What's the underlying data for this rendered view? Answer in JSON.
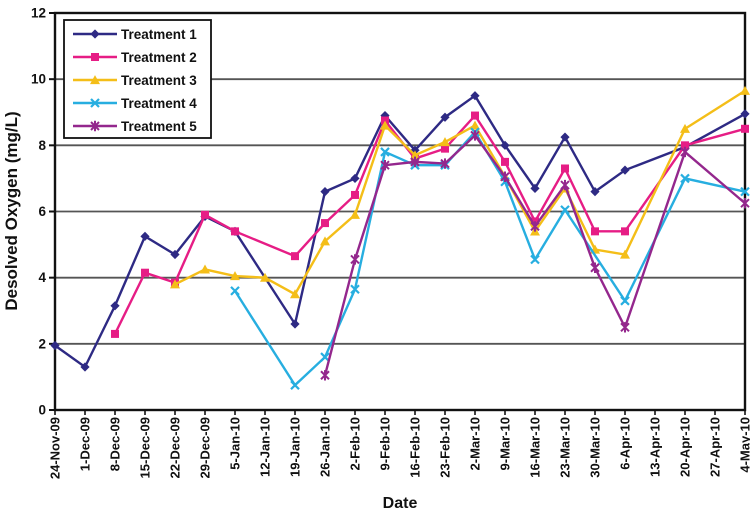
{
  "chart_data": {
    "type": "line",
    "xlabel": "Date",
    "ylabel": "Desolved Oxygen (mg/L)",
    "ylim": [
      0,
      12
    ],
    "yticks": [
      0,
      2,
      4,
      6,
      8,
      10,
      12
    ],
    "grid": "horizontal",
    "legend_position": "top-left-inside",
    "axis_color": "#111111",
    "gridline_color": "#555555",
    "categories": [
      "24-Nov-09",
      "1-Dec-09",
      "8-Dec-09",
      "15-Dec-09",
      "22-Dec-09",
      "29-Dec-09",
      "5-Jan-10",
      "12-Jan-10",
      "19-Jan-10",
      "26-Jan-10",
      "2-Feb-10",
      "9-Feb-10",
      "16-Feb-10",
      "23-Feb-10",
      "2-Mar-10",
      "9-Mar-10",
      "16-Mar-10",
      "23-Mar-10",
      "30-Mar-10",
      "6-Apr-10",
      "13-Apr-10",
      "20-Apr-10",
      "27-Apr-10",
      "4-May-10"
    ],
    "series": [
      {
        "name": "Treatment 1",
        "color": "#2E2A84",
        "marker": "diamond",
        "values": [
          1.95,
          1.3,
          3.15,
          5.25,
          4.7,
          5.85,
          5.4,
          null,
          2.6,
          6.6,
          7.0,
          8.9,
          7.85,
          8.85,
          9.5,
          8.0,
          6.7,
          8.25,
          6.6,
          7.25,
          null,
          7.95,
          null,
          8.95
        ]
      },
      {
        "name": "Treatment 2",
        "color": "#E61D85",
        "marker": "square",
        "values": [
          null,
          null,
          2.3,
          4.15,
          3.85,
          5.9,
          5.4,
          null,
          4.65,
          5.65,
          6.5,
          8.75,
          7.6,
          7.9,
          8.9,
          7.5,
          5.7,
          7.3,
          5.4,
          5.4,
          null,
          8.0,
          null,
          8.5
        ]
      },
      {
        "name": "Treatment 3",
        "color": "#F4BE18",
        "marker": "triangle",
        "values": [
          null,
          null,
          null,
          null,
          3.8,
          4.25,
          4.05,
          4.0,
          3.5,
          5.1,
          5.9,
          8.6,
          7.7,
          8.1,
          8.6,
          7.05,
          5.4,
          6.7,
          4.85,
          4.7,
          null,
          8.5,
          null,
          9.65
        ]
      },
      {
        "name": "Treatment 4",
        "color": "#27AEE0",
        "marker": "x",
        "values": [
          null,
          null,
          null,
          null,
          null,
          null,
          3.6,
          null,
          0.75,
          1.6,
          3.65,
          7.8,
          7.4,
          7.4,
          8.4,
          6.9,
          4.55,
          6.05,
          null,
          3.3,
          null,
          7.0,
          null,
          6.6
        ]
      },
      {
        "name": "Treatment 5",
        "color": "#94278D",
        "marker": "star",
        "values": [
          null,
          null,
          null,
          null,
          null,
          null,
          null,
          null,
          null,
          1.05,
          4.55,
          7.4,
          7.5,
          7.45,
          8.3,
          7.05,
          5.55,
          6.8,
          4.3,
          2.5,
          null,
          7.8,
          null,
          6.25
        ]
      }
    ]
  }
}
